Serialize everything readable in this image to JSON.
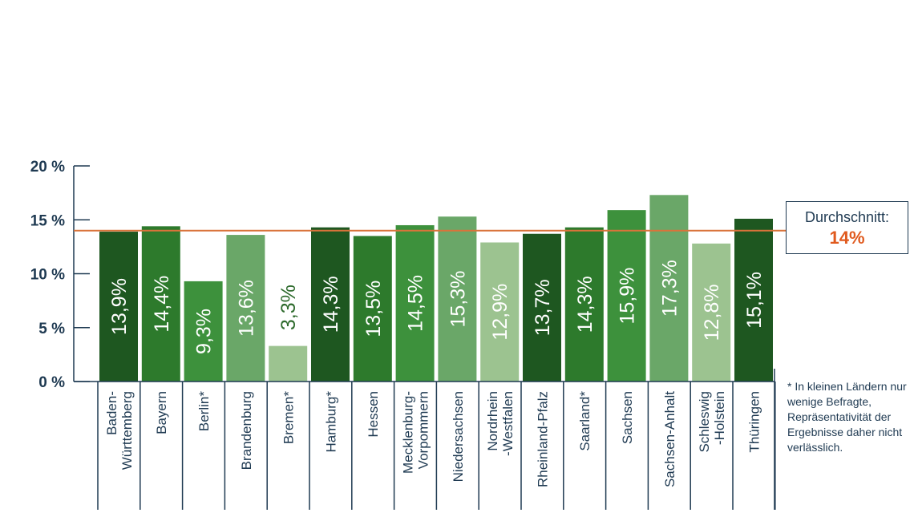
{
  "chart_data": {
    "type": "bar",
    "categories": [
      "Baden-\nWürttemberg",
      "Bayern",
      "Berlin*",
      "Brandenburg",
      "Bremen*",
      "Hamburg*",
      "Hessen",
      "Mecklenburg-\nVorpommern",
      "Niedersachsen",
      "Nordrhein\n-Westfalen",
      "Rheinland-Pfalz",
      "Saarland*",
      "Sachsen",
      "Sachsen-Anhalt",
      "Schleswig\n-Holstein",
      "Thüringen"
    ],
    "values": [
      13.9,
      14.4,
      9.3,
      13.6,
      3.3,
      14.3,
      13.5,
      14.5,
      15.3,
      12.9,
      13.7,
      14.3,
      15.9,
      17.3,
      12.8,
      15.1
    ],
    "value_labels": [
      "13,9%",
      "14,4%",
      "9,3%",
      "13,6%",
      "3,3%",
      "14,3%",
      "13,5%",
      "14,5%",
      "15,3%",
      "12,9%",
      "13,7%",
      "14,3%",
      "15,9%",
      "17,3%",
      "12,8%",
      "15,1%"
    ],
    "bar_colors": [
      "#1e5720",
      "#2d7a2c",
      "#3d913c",
      "#6aa768",
      "#9cc390",
      "#1e5720",
      "#2d7a2c",
      "#3d913c",
      "#6aa768",
      "#9cc390",
      "#1e5720",
      "#2d7a2c",
      "#3d913c",
      "#6aa768",
      "#9cc390",
      "#1e5720"
    ],
    "ylim": [
      0,
      20
    ],
    "yticks": [
      0,
      5,
      10,
      15,
      20
    ],
    "ytick_labels": [
      "0 %",
      "5 %",
      "10 %",
      "15 %",
      "20 %"
    ],
    "average": 14,
    "average_color": "#d9733a",
    "axis_color": "#1f3a52",
    "label_color": "#ffffff",
    "outside_label_color": "#2d6a2c",
    "title": "",
    "xlabel": "",
    "ylabel": ""
  },
  "average_box": {
    "title": "Durchschnitt:",
    "value": "14%"
  },
  "footnote": "* In kleinen Ländern nur wenige Befragte, Repräsentativität der Ergebnisse daher nicht verlässlich."
}
